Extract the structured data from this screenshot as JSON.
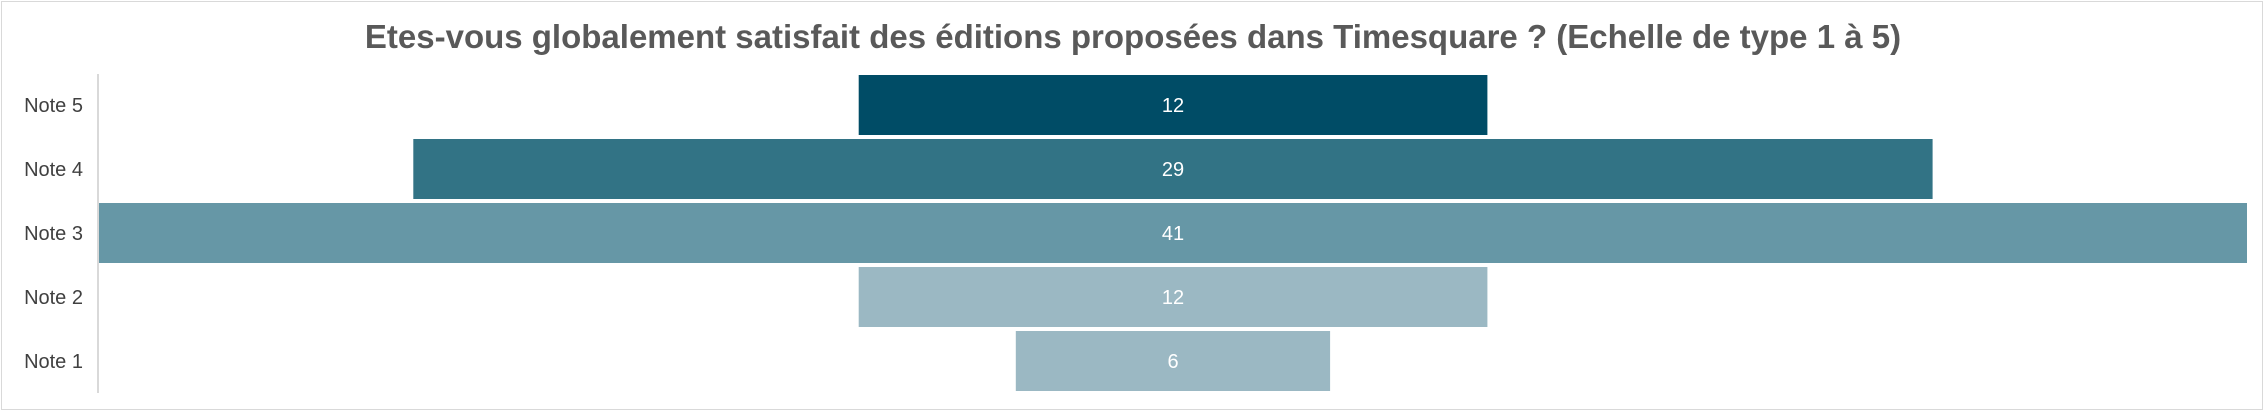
{
  "chart_data": {
    "type": "bar",
    "subtype": "funnel",
    "title": "Etes-vous globalement satisfait des éditions proposées dans Timesquare ? (Echelle de type 1 à 5)",
    "categories": [
      "Note 5",
      "Note 4",
      "Note 3",
      "Note 2",
      "Note 1"
    ],
    "values": [
      12,
      29,
      41,
      12,
      6
    ],
    "colors": [
      "#004c66",
      "#327385",
      "#6697a6",
      "#9bb8c3",
      "#9bb8c3"
    ],
    "xlabel": "",
    "ylabel": "",
    "grid": false,
    "legend": "none"
  }
}
